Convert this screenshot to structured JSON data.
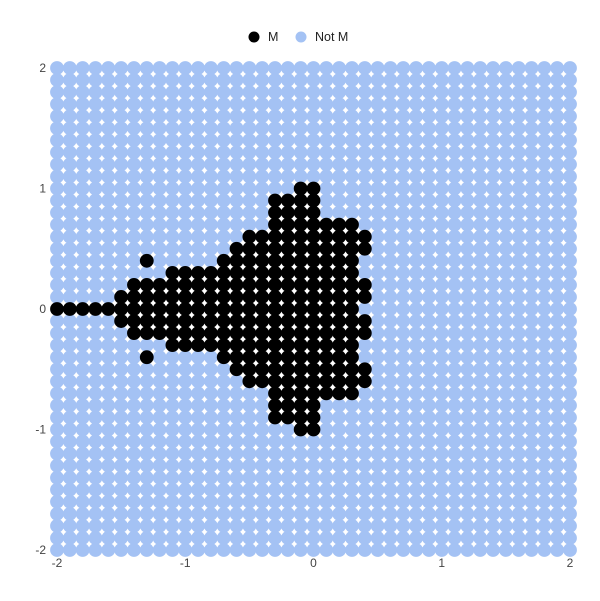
{
  "chart": {
    "legend": {
      "items": [
        {
          "label": "M",
          "color": "#000000"
        },
        {
          "label": "Not M",
          "color": "#a4c2f4"
        }
      ]
    },
    "x_axis": {
      "ticks": [
        "-2",
        "-1",
        "0",
        "1",
        "2"
      ]
    },
    "y_axis": {
      "ticks": [
        "2",
        "1",
        "0",
        "-1",
        "-2"
      ]
    },
    "colors": {
      "in_set": "#000000",
      "not_in_set": "#a4c2f4",
      "background": "#ffffff",
      "tick_text": "#444444"
    }
  },
  "chart_data": {
    "type": "scatter",
    "title": "",
    "xlabel": "",
    "ylabel": "",
    "xlim": [
      -2,
      2
    ],
    "ylim": [
      -2,
      2
    ],
    "grid_on": false,
    "legend_position": "top-center",
    "series": [
      {
        "name": "M",
        "color": "#000000"
      },
      {
        "name": "Not M",
        "color": "#a4c2f4"
      }
    ],
    "description": "41x41 lattice of points, x from -2 to 2 step 0.1 (columns left to right), y from 2 to -2 step -0.1 (rows top to bottom). 'M' = black in-set point, '.' = light blue not-in-set point.",
    "x_start": -2.0,
    "x_step": 0.1,
    "y_start": 2.0,
    "y_step": -0.1,
    "grid": [
      ".........................................",
      ".........................................",
      ".........................................",
      ".........................................",
      ".........................................",
      ".........................................",
      ".........................................",
      ".........................................",
      ".........................................",
      ".........................................",
      "...................MM....................",
      ".................MMMM....................",
      ".................MMMM....................",
      ".................MMMMMMM.................",
      "...............MMMMMMMMMM................",
      "..............MMMMMMMMMMM................",
      ".......M.....MMMMMMMMMMM.................",
      ".........MMMMMMMMMMMMMMM.................",
      "......MMMMMMMMMMMMMMMMMMM................",
      ".....MMMMMMMMMMMMMMMMMMMM................",
      "MMMMMMMMMMMMMMMMMMMMMMMM.................",
      ".....MMMMMMMMMMMMMMMMMMMM................",
      "......MMMMMMMMMMMMMMMMMMM................",
      ".........MMMMMMMMMMMMMMM.................",
      ".......M.....MMMMMMMMMMM.................",
      "..............MMMMMMMMMMM................",
      "...............MMMMMMMMMM................",
      ".................MMMMMMM.................",
      ".................MMMM....................",
      ".................MMMM....................",
      "...................MM....................",
      ".........................................",
      ".........................................",
      ".........................................",
      ".........................................",
      ".........................................",
      ".........................................",
      ".........................................",
      ".........................................",
      ".........................................",
      "........................................."
    ]
  },
  "layout_note": "grid rows count: 41 (index 0..40)"
}
